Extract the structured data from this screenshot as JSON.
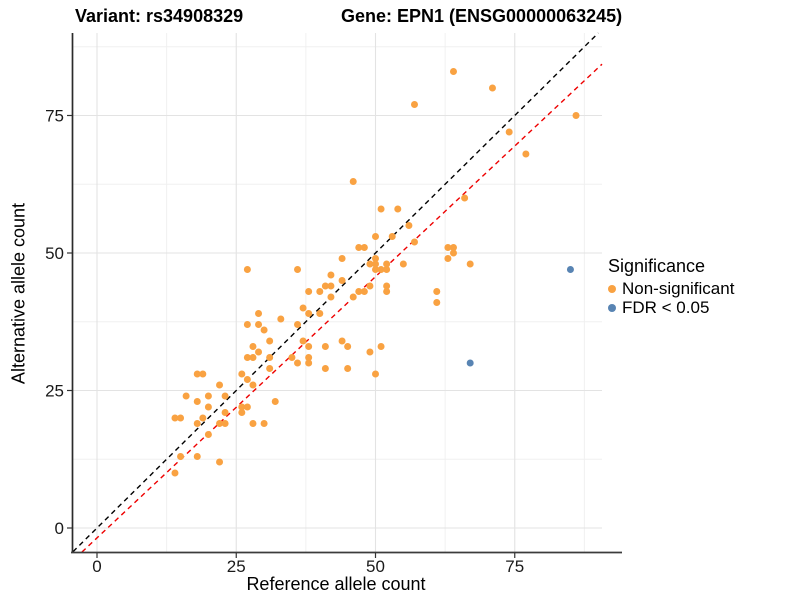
{
  "header": {
    "variant_title": "Variant: rs34908329",
    "gene_title": "Gene: EPN1 (ENSG00000063245)"
  },
  "axes": {
    "x_label": "Reference allele count",
    "y_label": "Alternative allele count",
    "x_ticks": [
      0,
      25,
      50,
      75
    ],
    "y_ticks": [
      0,
      25,
      50,
      75
    ]
  },
  "legend": {
    "title": "Significance",
    "items": [
      {
        "label": "Non-significant",
        "color": "#F9A242"
      },
      {
        "label": "FDR < 0.05",
        "color": "#5884B3"
      }
    ]
  },
  "chart_data": {
    "type": "scatter",
    "title": "Variant: rs34908329 | Gene: EPN1 (ENSG00000063245)",
    "xlabel": "Reference allele count",
    "ylabel": "Alternative allele count",
    "xlim": [
      -4.3,
      90.7
    ],
    "ylim": [
      -4.4,
      90.0
    ],
    "x_major_ticks": [
      0,
      25,
      50,
      75
    ],
    "y_major_ticks": [
      0,
      25,
      50,
      75
    ],
    "x_minor_ticks": [
      12.5,
      37.5,
      62.5,
      87.5
    ],
    "y_minor_ticks": [
      12.5,
      37.5,
      62.5,
      87.5
    ],
    "grid": true,
    "legend_position": "right",
    "series": [
      {
        "name": "Non-significant",
        "color": "#F9A242",
        "points": [
          [
            14,
            10
          ],
          [
            15,
            13
          ],
          [
            18,
            13
          ],
          [
            22,
            12
          ],
          [
            20,
            17
          ],
          [
            14,
            20
          ],
          [
            15,
            20
          ],
          [
            18,
            19
          ],
          [
            19,
            20
          ],
          [
            22,
            19
          ],
          [
            23,
            19
          ],
          [
            28,
            19
          ],
          [
            30,
            19
          ],
          [
            20,
            22
          ],
          [
            23,
            21
          ],
          [
            26,
            21
          ],
          [
            26,
            22
          ],
          [
            27,
            22
          ],
          [
            18,
            23
          ],
          [
            32,
            23
          ],
          [
            16,
            24
          ],
          [
            20,
            24
          ],
          [
            23,
            24
          ],
          [
            22,
            26
          ],
          [
            26,
            28
          ],
          [
            27,
            27
          ],
          [
            28,
            26
          ],
          [
            18,
            28
          ],
          [
            19,
            28
          ],
          [
            27,
            31
          ],
          [
            28,
            31
          ],
          [
            31,
            31
          ],
          [
            29,
            32
          ],
          [
            28,
            33
          ],
          [
            31,
            34
          ],
          [
            30,
            36
          ],
          [
            27,
            37
          ],
          [
            29,
            37
          ],
          [
            33,
            38
          ],
          [
            29,
            39
          ],
          [
            35,
            31
          ],
          [
            36,
            30
          ],
          [
            37,
            34
          ],
          [
            38,
            30
          ],
          [
            38,
            31
          ],
          [
            38,
            33
          ],
          [
            31,
            29
          ],
          [
            38,
            39
          ],
          [
            40,
            39
          ],
          [
            37,
            40
          ],
          [
            36,
            37
          ],
          [
            41,
            29
          ],
          [
            45,
            29
          ],
          [
            41,
            33
          ],
          [
            44,
            34
          ],
          [
            45,
            33
          ],
          [
            49,
            32
          ],
          [
            51,
            33
          ],
          [
            50,
            28
          ],
          [
            38,
            43
          ],
          [
            40,
            43
          ],
          [
            41,
            44
          ],
          [
            42,
            44
          ],
          [
            44,
            45
          ],
          [
            42,
            46
          ],
          [
            36,
            47
          ],
          [
            27,
            47
          ],
          [
            46,
            42
          ],
          [
            42,
            42
          ],
          [
            47,
            43
          ],
          [
            48,
            43
          ],
          [
            49,
            44
          ],
          [
            52,
            44
          ],
          [
            52,
            43
          ],
          [
            50,
            48
          ],
          [
            52,
            48
          ],
          [
            49,
            48
          ],
          [
            50,
            47
          ],
          [
            51,
            47
          ],
          [
            52,
            47
          ],
          [
            61,
            41
          ],
          [
            61,
            43
          ],
          [
            44,
            49
          ],
          [
            47,
            51
          ],
          [
            48,
            51
          ],
          [
            50,
            49
          ],
          [
            50,
            53
          ],
          [
            53,
            53
          ],
          [
            56,
            55
          ],
          [
            51,
            58
          ],
          [
            54,
            58
          ],
          [
            57,
            52
          ],
          [
            55,
            48
          ],
          [
            63,
            51
          ],
          [
            64,
            51
          ],
          [
            63,
            49
          ],
          [
            64,
            50
          ],
          [
            67,
            48
          ],
          [
            66,
            60
          ],
          [
            46,
            63
          ],
          [
            57,
            77
          ],
          [
            64,
            83
          ],
          [
            71,
            80
          ],
          [
            74,
            72
          ],
          [
            77,
            68
          ],
          [
            86,
            75
          ]
        ]
      },
      {
        "name": "FDR < 0.05",
        "color": "#5884B3",
        "points": [
          [
            67,
            30
          ],
          [
            85,
            47
          ]
        ]
      }
    ],
    "lines": [
      {
        "name": "identity",
        "slope": 1,
        "intercept": 0,
        "color": "#000000",
        "style": "dashed"
      },
      {
        "name": "regression",
        "slope": 0.95,
        "intercept": -1.8,
        "color": "#EE0000",
        "style": "dashed"
      }
    ]
  }
}
